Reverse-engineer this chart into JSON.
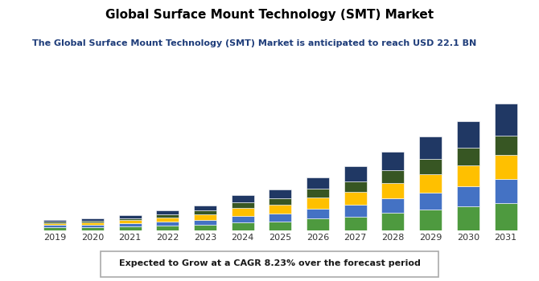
{
  "title": "Global Surface Mount Technology (SMT) Market",
  "subtitle": "The Global Surface Mount Technology (SMT) Market is anticipated to reach USD 22.1 BN",
  "footer": "Expected to Grow at a CAGR 8.23% over the forecast period",
  "years": [
    2019,
    2020,
    2021,
    2022,
    2023,
    2024,
    2025,
    2026,
    2027,
    2028,
    2029,
    2030,
    2031
  ],
  "segments": {
    "bright_green": [
      0.3,
      0.33,
      0.4,
      0.48,
      0.55,
      0.75,
      0.85,
      1.1,
      1.3,
      1.6,
      1.9,
      2.2,
      2.55
    ],
    "med_blue": [
      0.2,
      0.22,
      0.28,
      0.35,
      0.42,
      0.58,
      0.7,
      0.9,
      1.1,
      1.35,
      1.6,
      1.9,
      2.2
    ],
    "yellow": [
      0.18,
      0.2,
      0.25,
      0.38,
      0.5,
      0.72,
      0.85,
      1.05,
      1.2,
      1.45,
      1.7,
      1.95,
      2.25
    ],
    "dark_green": [
      0.15,
      0.17,
      0.22,
      0.28,
      0.38,
      0.52,
      0.6,
      0.78,
      0.95,
      1.15,
      1.38,
      1.58,
      1.8
    ],
    "navy_blue": [
      0.17,
      0.19,
      0.28,
      0.35,
      0.48,
      0.68,
      0.82,
      1.1,
      1.4,
      1.75,
      2.1,
      2.5,
      2.95
    ]
  },
  "colors": {
    "bright_green": "#4e9a3f",
    "med_blue": "#4472c4",
    "yellow": "#ffc000",
    "dark_green": "#375623",
    "navy_blue": "#203864"
  },
  "background_color": "#ffffff",
  "plot_bg_color": "#ffffff",
  "grid_color": "#d8d8d8",
  "title_color": "#000000",
  "subtitle_color": "#1f3d7a",
  "bar_width": 0.6,
  "ylim": [
    0,
    13
  ],
  "title_fontsize": 11,
  "subtitle_fontsize": 8,
  "footer_fontsize": 8,
  "tick_fontsize": 8
}
